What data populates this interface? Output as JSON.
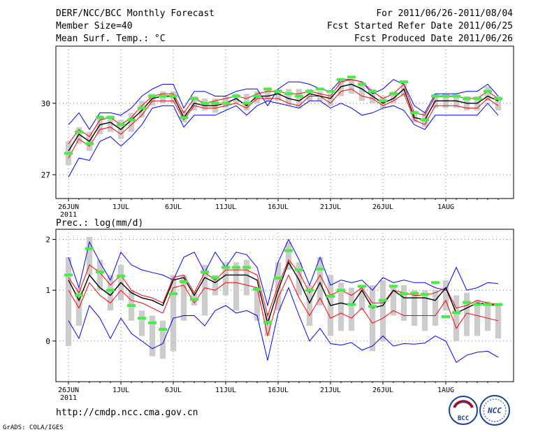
{
  "header": {
    "title": "DERF/NCC/BCC Monthly Forecast",
    "member_size": "Member Size=40",
    "variable_temp": "Mean Surf. Temp.: °C",
    "for_range": "For 2011/06/26-2011/08/04",
    "fcst_started": "Fcst Started Refer Date 2011/06/25",
    "fcst_produced": "Fcst Produced Date 2011/06/26"
  },
  "footer": {
    "url": "http://cmdp.ncc.cma.gov.cn",
    "grads_credit": "GrADS: COLA/IGES",
    "logo_bcc": "BCC",
    "logo_ncc": "NCC"
  },
  "colors": {
    "envelope": "#0000ff",
    "spread": "#ff0000",
    "mean": "#000000",
    "box": "#cccccc",
    "marker": "#44ee44",
    "grid": "#777777"
  },
  "chart_data": [
    {
      "id": "temperature",
      "type": "line",
      "title": "Mean Surf. Temp.: °C",
      "xlabel": "",
      "ylabel": "°C",
      "ylim": [
        26.0,
        32.4
      ],
      "yticks": [
        27,
        30
      ],
      "xticks": [
        {
          "day": 0,
          "label": "26JUN",
          "sub": "2011"
        },
        {
          "day": 5,
          "label": "1JUL"
        },
        {
          "day": 10,
          "label": "6JUL"
        },
        {
          "day": 15,
          "label": "11JUL"
        },
        {
          "day": 20,
          "label": "16JUL"
        },
        {
          "day": 25,
          "label": "21JUL"
        },
        {
          "day": 30,
          "label": "26JUL"
        },
        {
          "day": 36,
          "label": "1AUG"
        }
      ],
      "series": [
        {
          "name": "max",
          "role": "envelope",
          "values": [
            29.1,
            29.6,
            28.9,
            29.6,
            29.6,
            29.5,
            29.8,
            30.3,
            30.6,
            30.8,
            30.8,
            29.8,
            30.5,
            30.5,
            30.3,
            30.3,
            30.5,
            30.6,
            30.6,
            29.9,
            30.6,
            30.9,
            30.9,
            30.8,
            30.6,
            30.5,
            31.0,
            31.0,
            30.9,
            30.4,
            30.6,
            31.0,
            30.8,
            29.9,
            29.6,
            30.4,
            30.4,
            30.4,
            30.5,
            30.5,
            30.8,
            30.3
          ]
        },
        {
          "name": "min",
          "role": "envelope",
          "values": [
            26.9,
            27.7,
            27.6,
            28.4,
            28.6,
            28.2,
            28.6,
            29.1,
            29.8,
            29.9,
            29.9,
            29.0,
            29.5,
            29.5,
            29.5,
            29.7,
            29.9,
            29.5,
            29.9,
            30.1,
            30.0,
            29.9,
            29.8,
            30.1,
            30.1,
            29.8,
            30.0,
            29.8,
            29.5,
            29.6,
            29.8,
            29.9,
            29.7,
            29.1,
            28.9,
            29.5,
            29.5,
            29.5,
            29.5,
            29.5,
            30.0,
            29.5
          ]
        },
        {
          "name": "upper",
          "role": "spread",
          "values": [
            28.3,
            28.9,
            28.6,
            29.3,
            29.4,
            29.1,
            29.4,
            29.9,
            30.3,
            30.4,
            30.4,
            29.6,
            30.2,
            30.0,
            30.1,
            30.2,
            30.3,
            30.2,
            30.4,
            30.5,
            30.5,
            30.4,
            30.4,
            30.5,
            30.4,
            30.3,
            30.9,
            31.0,
            30.9,
            30.5,
            30.2,
            30.4,
            30.8,
            29.6,
            29.5,
            30.3,
            30.3,
            30.3,
            30.2,
            30.2,
            30.5,
            30.2
          ]
        },
        {
          "name": "lower",
          "role": "spread",
          "values": [
            27.7,
            28.5,
            28.2,
            28.9,
            29.0,
            28.7,
            29.1,
            29.5,
            30.1,
            30.1,
            30.1,
            29.3,
            29.9,
            29.8,
            29.8,
            29.9,
            30.0,
            29.8,
            30.2,
            30.2,
            30.2,
            30.0,
            29.9,
            30.3,
            30.3,
            30.0,
            30.5,
            30.6,
            30.3,
            30.2,
            29.9,
            30.1,
            30.4,
            29.3,
            29.1,
            29.9,
            29.9,
            29.9,
            29.8,
            29.8,
            30.2,
            29.9
          ]
        },
        {
          "name": "mean",
          "role": "mean",
          "values": [
            28.0,
            28.7,
            28.4,
            29.1,
            29.2,
            28.9,
            29.3,
            29.7,
            30.2,
            30.3,
            30.3,
            29.4,
            30.0,
            29.9,
            29.9,
            30.0,
            30.2,
            29.9,
            30.3,
            30.3,
            30.4,
            30.2,
            30.1,
            30.4,
            30.3,
            30.2,
            30.7,
            30.8,
            30.6,
            30.3,
            30.0,
            30.2,
            30.6,
            29.4,
            29.3,
            30.1,
            30.1,
            30.1,
            30.0,
            30.0,
            30.3,
            30.1
          ]
        }
      ],
      "boxes": {
        "low": [
          27.4,
          28.3,
          28.0,
          28.7,
          28.8,
          28.5,
          28.8,
          29.4,
          29.9,
          30.0,
          30.0,
          29.2,
          29.7,
          29.7,
          29.6,
          29.8,
          30.0,
          29.7,
          30.0,
          30.1,
          30.1,
          29.9,
          29.8,
          30.1,
          30.1,
          29.9,
          30.3,
          30.4,
          30.1,
          30.0,
          29.8,
          30.0,
          30.3,
          29.2,
          29.0,
          29.8,
          29.8,
          29.8,
          29.7,
          29.7,
          30.1,
          29.7
        ],
        "high": [
          28.4,
          29.0,
          28.8,
          29.5,
          29.5,
          29.3,
          29.6,
          30.1,
          30.4,
          30.5,
          30.5,
          29.7,
          30.3,
          30.2,
          30.2,
          30.3,
          30.4,
          30.4,
          30.5,
          30.6,
          30.6,
          30.6,
          30.6,
          30.6,
          30.5,
          30.4,
          31.0,
          31.0,
          30.9,
          30.6,
          30.3,
          30.5,
          30.9,
          29.7,
          29.6,
          30.4,
          30.4,
          30.4,
          30.3,
          30.3,
          30.7,
          30.3
        ]
      },
      "markers": [
        27.9,
        28.8,
        28.3,
        29.4,
        29.4,
        29.1,
        29.3,
        29.8,
        30.3,
        30.3,
        30.3,
        29.4,
        30.2,
        30.0,
        30.0,
        30.0,
        30.3,
        30.0,
        30.3,
        30.6,
        30.5,
        30.4,
        30.3,
        30.5,
        30.6,
        30.5,
        31.0,
        31.1,
        30.8,
        30.5,
        30.1,
        30.4,
        30.9,
        29.6,
        29.3,
        30.3,
        30.3,
        30.3,
        30.2,
        30.2,
        30.5,
        30.2
      ]
    },
    {
      "id": "precipitation",
      "type": "line",
      "title": "Prec.: log(mm/d)",
      "xlabel": "",
      "ylabel": "log(mm/d)",
      "ylim": [
        -0.8,
        2.2
      ],
      "yticks": [
        0,
        1,
        2
      ],
      "xticks": [
        {
          "day": 0,
          "label": "26JUN",
          "sub": "2011"
        },
        {
          "day": 5,
          "label": "1JUL"
        },
        {
          "day": 10,
          "label": "6JUL"
        },
        {
          "day": 15,
          "label": "11JUL"
        },
        {
          "day": 20,
          "label": "16JUL"
        },
        {
          "day": 25,
          "label": "21JUL"
        },
        {
          "day": 30,
          "label": "26JUL"
        },
        {
          "day": 36,
          "label": "1AUG"
        }
      ],
      "series": [
        {
          "name": "max",
          "role": "envelope",
          "values": [
            1.65,
            1.05,
            1.95,
            1.55,
            1.2,
            1.75,
            1.5,
            1.4,
            1.35,
            1.3,
            1.2,
            1.65,
            1.75,
            1.35,
            1.75,
            1.45,
            1.75,
            1.7,
            1.45,
            0.7,
            1.55,
            2.0,
            1.6,
            1.1,
            1.65,
            1.1,
            1.2,
            1.15,
            1.2,
            1.0,
            1.25,
            1.15,
            1.2,
            1.15,
            1.15,
            1.05,
            1.0,
            1.45,
            1.0,
            1.05,
            1.15,
            1.13
          ]
        },
        {
          "name": "min",
          "role": "envelope",
          "values": [
            0.4,
            0.05,
            0.7,
            0.45,
            0.05,
            0.45,
            0.15,
            0.0,
            -0.15,
            -0.05,
            0.45,
            0.5,
            0.5,
            0.3,
            0.6,
            0.7,
            0.55,
            0.6,
            0.5,
            -0.38,
            0.55,
            1.05,
            0.5,
            0.0,
            0.25,
            -0.05,
            -0.08,
            -0.03,
            -0.18,
            -0.1,
            0.1,
            -0.1,
            -0.05,
            -0.06,
            -0.04,
            0.1,
            0.0,
            -0.42,
            -0.28,
            -0.22,
            -0.2,
            -0.32
          ]
        },
        {
          "name": "upper",
          "role": "spread",
          "values": [
            1.25,
            0.95,
            1.5,
            1.35,
            1.1,
            1.3,
            1.0,
            0.9,
            0.85,
            0.75,
            1.25,
            1.3,
            0.95,
            1.35,
            1.2,
            1.4,
            1.4,
            1.4,
            1.3,
            0.5,
            1.1,
            1.6,
            1.35,
            0.95,
            1.3,
            0.9,
            1.0,
            0.9,
            1.05,
            0.75,
            0.75,
            1.0,
            0.95,
            0.9,
            0.9,
            0.95,
            1.05,
            0.65,
            0.7,
            0.8,
            0.75,
            0.72
          ]
        },
        {
          "name": "lower",
          "role": "spread",
          "values": [
            1.0,
            0.65,
            1.15,
            0.9,
            0.75,
            1.0,
            0.8,
            0.75,
            0.65,
            0.55,
            1.05,
            1.1,
            0.75,
            1.05,
            1.0,
            1.15,
            1.15,
            1.1,
            1.05,
            0.1,
            0.85,
            1.3,
            0.85,
            0.5,
            0.85,
            0.45,
            0.55,
            0.45,
            0.65,
            0.35,
            0.45,
            0.6,
            0.5,
            0.5,
            0.5,
            0.5,
            0.8,
            0.25,
            0.55,
            0.5,
            0.45,
            0.4
          ]
        },
        {
          "name": "mean",
          "role": "mean",
          "values": [
            1.2,
            0.8,
            1.3,
            1.05,
            0.9,
            1.15,
            0.95,
            0.85,
            0.8,
            0.7,
            1.2,
            1.25,
            0.9,
            1.25,
            1.15,
            1.3,
            1.3,
            1.3,
            1.2,
            0.35,
            1.0,
            1.55,
            1.2,
            0.75,
            1.15,
            0.7,
            0.75,
            0.7,
            1.0,
            0.65,
            0.7,
            1.0,
            0.85,
            0.85,
            0.85,
            0.8,
            1.05,
            0.55,
            0.65,
            0.75,
            0.72,
            0.7
          ]
        }
      ],
      "boxes": {
        "low": [
          -0.1,
          0.3,
          1.3,
          1.0,
          0.6,
          0.8,
          0.4,
          0.1,
          -0.3,
          -0.35,
          -0.2,
          0.4,
          0.7,
          0.5,
          0.9,
          0.9,
          0.6,
          0.9,
          0.4,
          0.1,
          0.6,
          1.4,
          0.9,
          0.3,
          0.7,
          0.1,
          0.2,
          0.2,
          0.6,
          -0.2,
          0.0,
          0.5,
          0.4,
          0.3,
          0.2,
          0.3,
          0.6,
          0.0,
          0.1,
          0.1,
          0.2,
          0.05
        ],
        "high": [
          1.65,
          1.05,
          2.05,
          1.6,
          1.3,
          1.5,
          1.0,
          0.6,
          0.5,
          0.4,
          1.3,
          1.3,
          0.95,
          1.5,
          1.3,
          1.55,
          1.55,
          1.6,
          1.05,
          0.55,
          1.55,
          1.95,
          1.55,
          1.1,
          1.65,
          1.3,
          1.15,
          1.05,
          1.1,
          1.1,
          1.2,
          1.1,
          1.1,
          1.0,
          1.0,
          1.0,
          1.2,
          0.9,
          0.95,
          0.8,
          0.78,
          0.75
        ]
      },
      "markers": [
        1.3,
        0.9,
        1.82,
        1.36,
        1.0,
        1.28,
        0.7,
        0.45,
        0.36,
        0.23,
        0.93,
        1.17,
        0.82,
        1.36,
        1.25,
        1.45,
        1.45,
        1.45,
        1.02,
        0.37,
        1.24,
        1.78,
        1.4,
        1.0,
        1.42,
        0.88,
        1.0,
        0.72,
        1.08,
        0.68,
        0.8,
        1.08,
        0.93,
        0.94,
        0.92,
        1.15,
        0.48,
        0.56,
        0.76,
        0.72,
        0.72,
        0.72
      ]
    }
  ]
}
